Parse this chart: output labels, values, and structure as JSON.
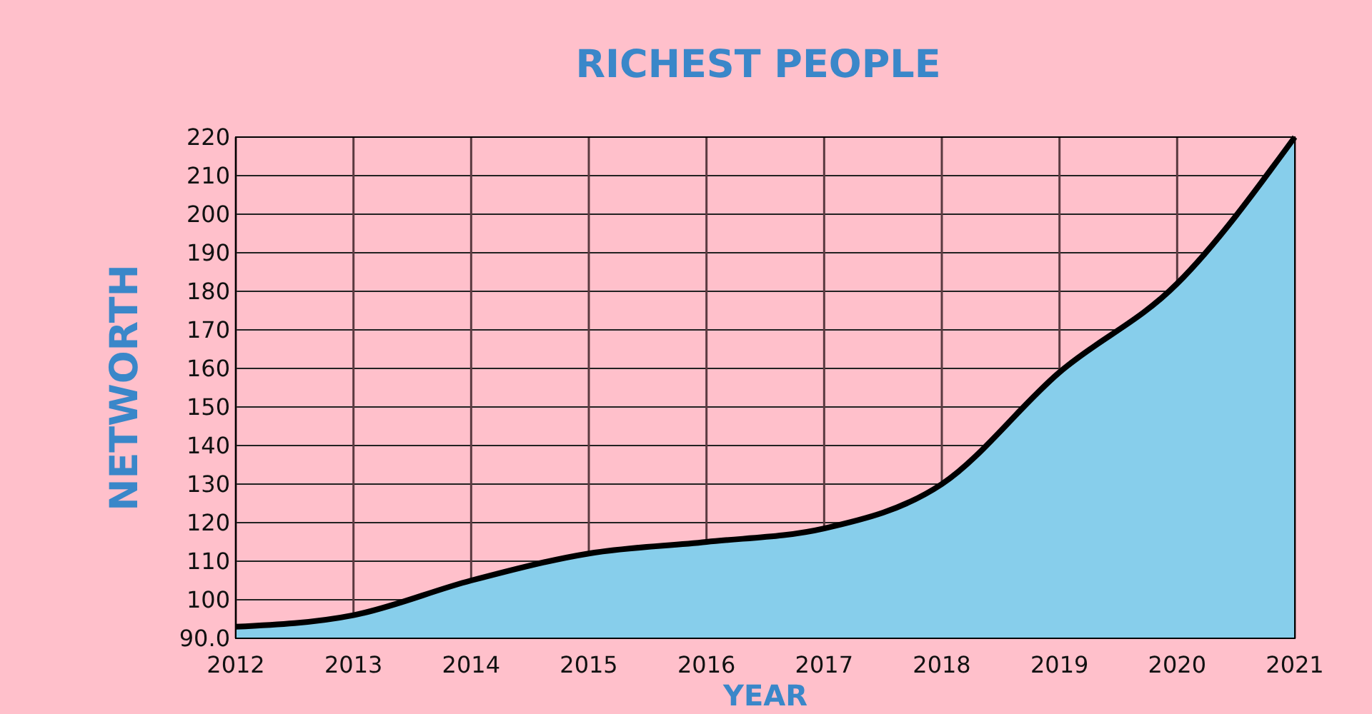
{
  "chart_data": {
    "type": "area",
    "title": "RICHEST PEOPLE",
    "xlabel": "YEAR",
    "ylabel": "NETWORTH",
    "x": [
      2012,
      2013,
      2014,
      2015,
      2016,
      2017,
      2018,
      2019,
      2020,
      2021
    ],
    "series": [
      {
        "color": "#87ceeb",
        "values": [
          93,
          96,
          105,
          112,
          115,
          118.5,
          130,
          159,
          182,
          220
        ]
      }
    ],
    "xlim": [
      2012,
      2021
    ],
    "xticks": [
      2012,
      2013,
      2014,
      2015,
      2016,
      2017,
      2018,
      2019,
      2020,
      2021
    ],
    "ylim": [
      90,
      220
    ],
    "yticks": [
      {
        "value": 90,
        "label": "90.0"
      },
      100,
      110,
      120,
      130,
      140,
      150,
      160,
      170,
      180,
      190,
      200,
      210,
      220
    ],
    "grid": true
  }
}
